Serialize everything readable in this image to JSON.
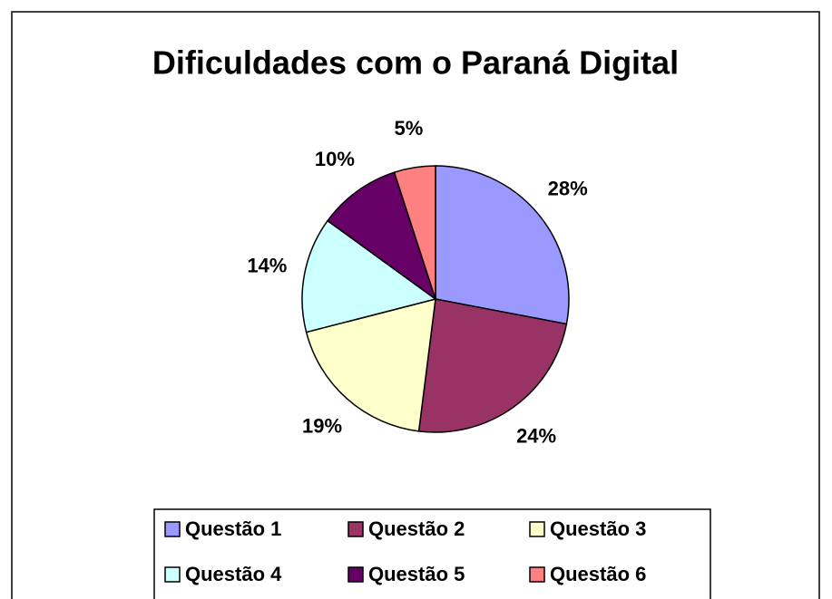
{
  "chart_data": {
    "type": "pie",
    "title": "Dificuldades com o Paraná Digital",
    "categories": [
      "Questão 1",
      "Questão 2",
      "Questão 3",
      "Questão 4",
      "Questão 5",
      "Questão 6"
    ],
    "values": [
      28,
      24,
      19,
      14,
      10,
      5
    ],
    "value_labels": [
      "28%",
      "24%",
      "19%",
      "14%",
      "10%",
      "5%"
    ],
    "colors": [
      "#9999ff",
      "#993366",
      "#ffffcc",
      "#ccffff",
      "#660066",
      "#ff8080"
    ],
    "legend": "bottom"
  }
}
